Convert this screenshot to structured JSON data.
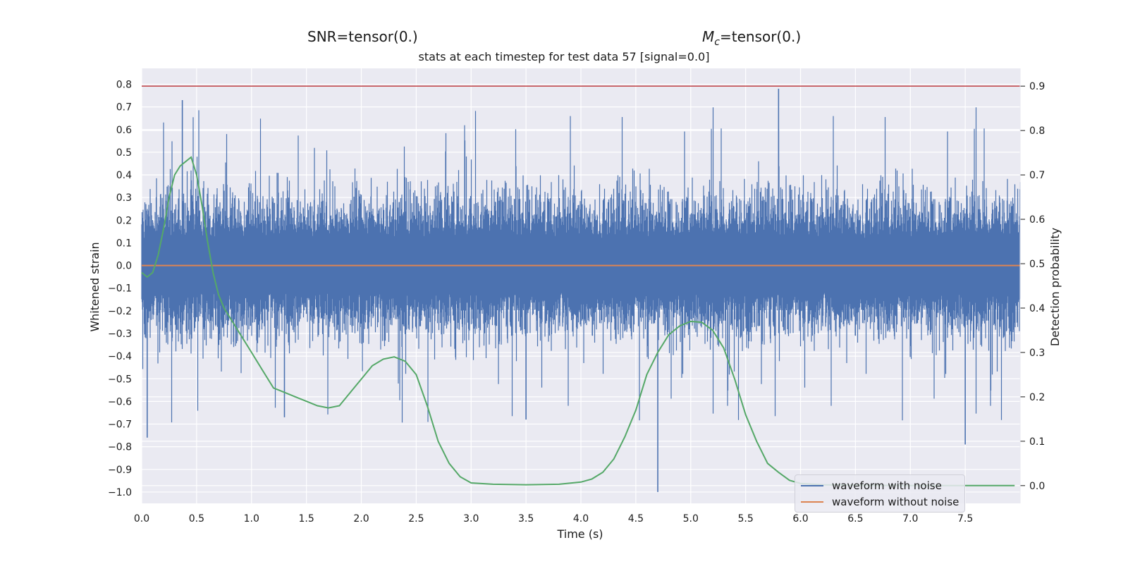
{
  "header": {
    "snr_label": "SNR=tensor(0.)",
    "mc_symbol": "M",
    "mc_sub": "c",
    "mc_value": "=tensor(0.)",
    "subtitle": "stats at each timestep for test data 57 [signal=0.0]"
  },
  "colors": {
    "background": "#eaeaf2",
    "grid": "#ffffff",
    "noise": "#4c72b0",
    "clean": "#dd8452",
    "probability": "#55a868",
    "threshold": "#c44e52"
  },
  "legend": {
    "items": [
      "waveform with noise",
      "waveform without noise"
    ],
    "placement": "lower-right"
  },
  "chart_data": {
    "type": "line",
    "xlabel": "Time (s)",
    "ylabel": "Whitened strain",
    "y2label": "Detection probability",
    "xlim": [
      0,
      8
    ],
    "ylim": [
      -1.05,
      0.87
    ],
    "y2lim": [
      -0.04,
      0.94
    ],
    "xticks": [
      "0.0",
      "0.5",
      "1.0",
      "1.5",
      "2.0",
      "2.5",
      "3.0",
      "3.5",
      "4.0",
      "4.5",
      "5.0",
      "5.5",
      "6.0",
      "6.5",
      "7.0",
      "7.5"
    ],
    "yticks": [
      "−1.0",
      "−0.9",
      "−0.8",
      "−0.7",
      "−0.6",
      "−0.5",
      "−0.4",
      "−0.3",
      "−0.2",
      "−0.1",
      "0.0",
      "0.1",
      "0.2",
      "0.3",
      "0.4",
      "0.5",
      "0.6",
      "0.7",
      "0.8"
    ],
    "y2ticks": [
      "0.0",
      "0.1",
      "0.2",
      "0.3",
      "0.4",
      "0.5",
      "0.6",
      "0.7",
      "0.8",
      "0.9"
    ],
    "grid": true,
    "series": [
      {
        "name": "waveform with noise",
        "axis": "left",
        "notes_range": [
          -1.0,
          0.78
        ],
        "approx_envelope": {
          "typical_band": [
            -0.45,
            0.45
          ],
          "max": 0.78,
          "min": -1.0
        }
      },
      {
        "name": "waveform without noise",
        "axis": "left",
        "constant": 0.0
      },
      {
        "axis": "right",
        "x": [
          0.0,
          0.05,
          0.1,
          0.15,
          0.2,
          0.25,
          0.3,
          0.35,
          0.4,
          0.45,
          0.5,
          0.55,
          0.6,
          0.65,
          0.7,
          0.75,
          0.8,
          0.9,
          1.0,
          1.1,
          1.2,
          1.3,
          1.4,
          1.5,
          1.6,
          1.7,
          1.8,
          1.9,
          2.0,
          2.1,
          2.2,
          2.3,
          2.4,
          2.5,
          2.6,
          2.7,
          2.8,
          2.9,
          3.0,
          3.2,
          3.5,
          3.8,
          4.0,
          4.1,
          4.2,
          4.3,
          4.4,
          4.5,
          4.6,
          4.7,
          4.8,
          4.9,
          5.0,
          5.1,
          5.2,
          5.3,
          5.4,
          5.5,
          5.6,
          5.7,
          5.8,
          5.9,
          6.0,
          6.2,
          6.5,
          7.0,
          7.5,
          7.95
        ],
        "values": [
          0.48,
          0.47,
          0.48,
          0.52,
          0.58,
          0.65,
          0.7,
          0.72,
          0.73,
          0.74,
          0.7,
          0.63,
          0.55,
          0.48,
          0.43,
          0.4,
          0.38,
          0.34,
          0.3,
          0.26,
          0.22,
          0.21,
          0.2,
          0.19,
          0.18,
          0.175,
          0.18,
          0.21,
          0.24,
          0.27,
          0.285,
          0.29,
          0.28,
          0.25,
          0.18,
          0.1,
          0.05,
          0.02,
          0.006,
          0.003,
          0.002,
          0.003,
          0.008,
          0.015,
          0.03,
          0.06,
          0.11,
          0.17,
          0.25,
          0.3,
          0.34,
          0.36,
          0.37,
          0.368,
          0.35,
          0.31,
          0.24,
          0.16,
          0.1,
          0.05,
          0.03,
          0.012,
          0.005,
          0.002,
          0.001,
          0.0,
          0.0,
          0.0
        ]
      },
      {
        "axis": "right",
        "constant": 0.9
      }
    ]
  }
}
